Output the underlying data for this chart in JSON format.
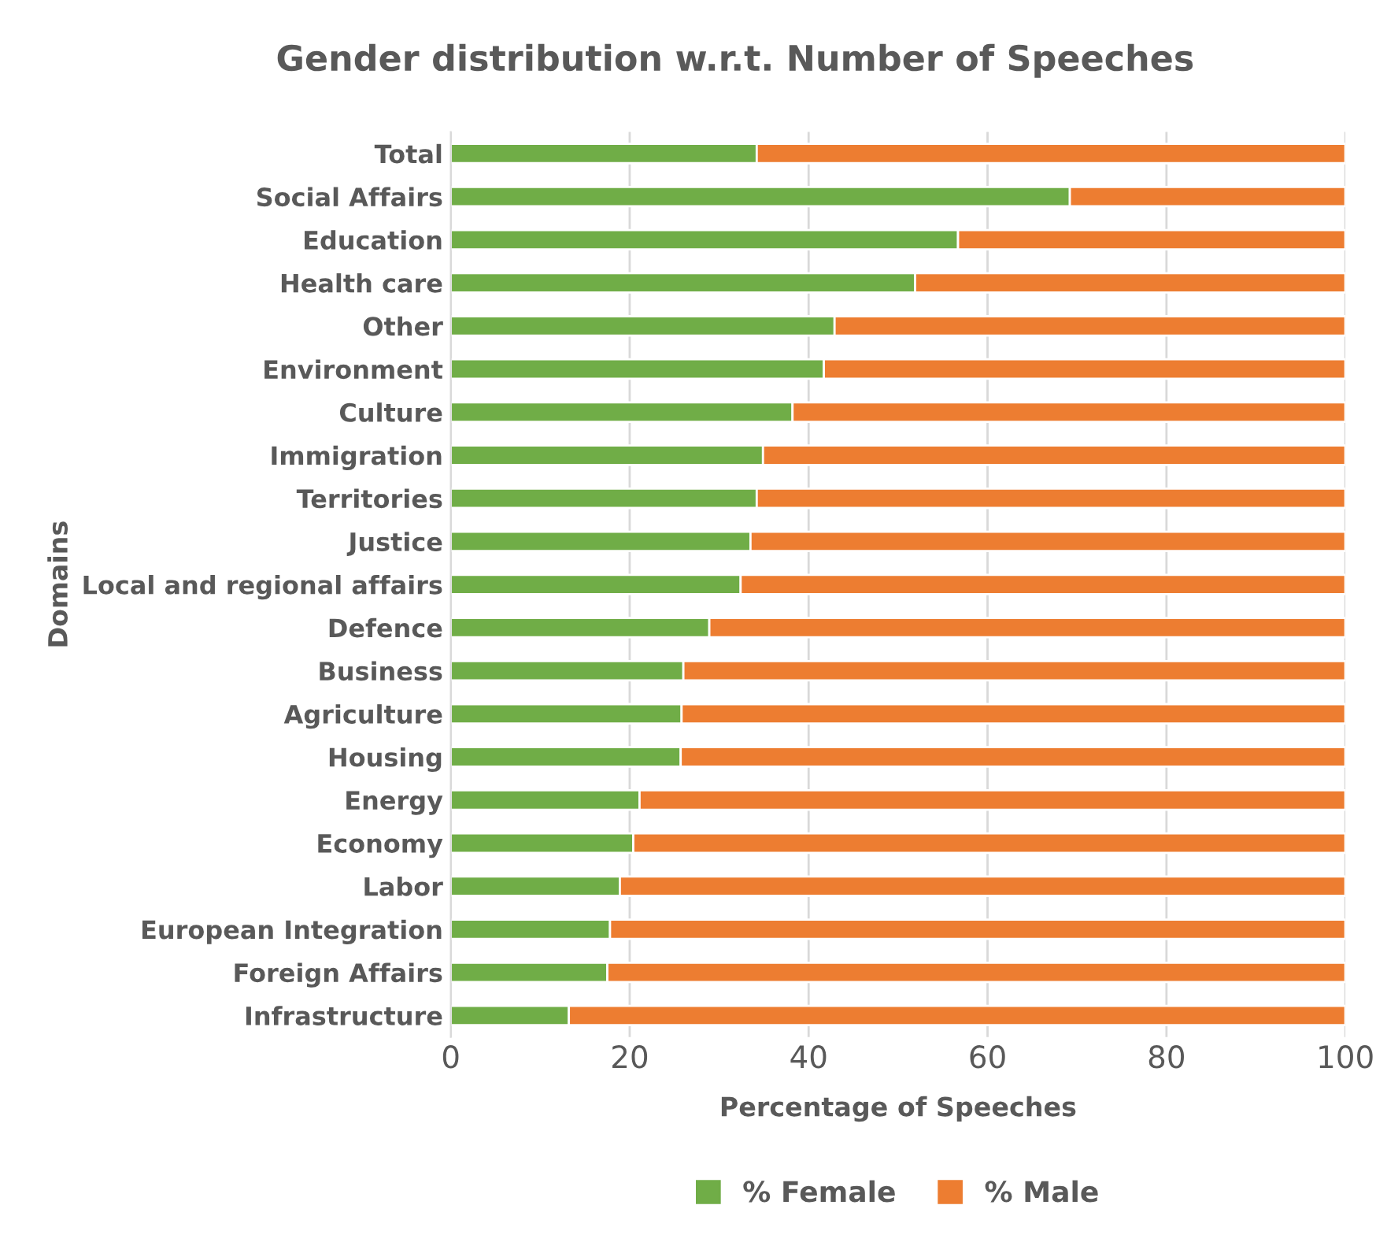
{
  "chart_data": {
    "type": "bar",
    "orientation": "horizontal",
    "stacked": true,
    "title": "Gender distribution w.r.t. Number of Speeches",
    "xlabel": "Percentage of Speeches",
    "ylabel": "Domains",
    "categories": [
      "Total",
      "Social Affairs",
      "Education",
      "Health care",
      "Other",
      "Environment",
      "Culture",
      "Immigration",
      "Territories",
      "Justice",
      "Local and regional affairs",
      "Defence",
      "Business",
      "Agriculture",
      "Housing",
      "Energy",
      "Economy",
      "Labor",
      "European Integration",
      "Foreign Affairs",
      "Infrastructure"
    ],
    "series": [
      {
        "name": "% Female",
        "color": "#70ad47",
        "values": [
          34.2,
          69.2,
          56.7,
          51.9,
          42.9,
          41.7,
          38.2,
          34.9,
          34.2,
          33.5,
          32.4,
          28.9,
          26.0,
          25.8,
          25.7,
          21.1,
          20.4,
          18.9,
          17.8,
          17.5,
          13.2
        ]
      },
      {
        "name": "% Male",
        "color": "#ed7d31",
        "values": [
          65.8,
          30.8,
          43.3,
          48.1,
          57.1,
          58.3,
          61.8,
          65.1,
          65.8,
          66.5,
          67.6,
          71.1,
          74.0,
          74.2,
          74.3,
          78.9,
          79.6,
          81.1,
          82.2,
          82.5,
          86.8
        ]
      }
    ],
    "xlim": [
      0,
      100
    ],
    "xticks": [
      0,
      20,
      40,
      60,
      80,
      100
    ],
    "grid": "x",
    "legend": "bottom"
  }
}
